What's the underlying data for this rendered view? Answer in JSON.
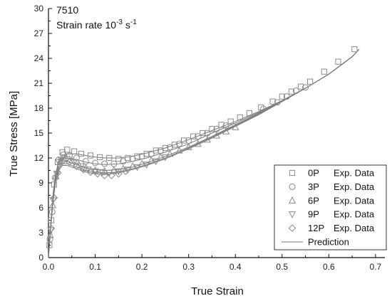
{
  "chart_data": {
    "type": "scatter",
    "annotation": {
      "line1": "7510",
      "line2_base": "Strain rate 10",
      "line2_exp": "-3",
      "line2_unit": " s",
      "line2_unit_exp": "-1"
    },
    "xlabel": "True Strain",
    "ylabel": "True Stress [MPa]",
    "xlim": [
      0,
      0.72
    ],
    "ylim": [
      0,
      30
    ],
    "x_ticks": [
      0.0,
      0.1,
      0.2,
      0.3,
      0.4,
      0.5,
      0.6,
      0.7
    ],
    "x_tick_labels": [
      "0.0",
      "0.1",
      "0.2",
      "0.3",
      "0.4",
      "0.5",
      "0.6",
      "0.7"
    ],
    "y_ticks": [
      0,
      3,
      6,
      9,
      12,
      15,
      18,
      21,
      24,
      27,
      30
    ],
    "y_tick_labels": [
      "0",
      "3",
      "6",
      "9",
      "12",
      "15",
      "18",
      "21",
      "24",
      "27",
      "30"
    ],
    "grid": false,
    "legend_position": "bottom-right",
    "series": [
      {
        "name": "0P",
        "label_suffix": "Exp. Data",
        "marker": "square",
        "points": [
          [
            0.002,
            1.5
          ],
          [
            0.006,
            4.5
          ],
          [
            0.012,
            8.8
          ],
          [
            0.02,
            11.5
          ],
          [
            0.03,
            12.7
          ],
          [
            0.04,
            13.0
          ],
          [
            0.055,
            12.8
          ],
          [
            0.07,
            12.5
          ],
          [
            0.09,
            12.3
          ],
          [
            0.11,
            12.1
          ],
          [
            0.13,
            12.0
          ],
          [
            0.15,
            11.9
          ],
          [
            0.17,
            12.0
          ],
          [
            0.19,
            12.2
          ],
          [
            0.21,
            12.5
          ],
          [
            0.23,
            12.9
          ],
          [
            0.25,
            13.2
          ],
          [
            0.27,
            13.6
          ],
          [
            0.29,
            14.1
          ],
          [
            0.31,
            14.6
          ],
          [
            0.33,
            15.0
          ],
          [
            0.35,
            15.5
          ],
          [
            0.37,
            16.0
          ],
          [
            0.39,
            16.4
          ],
          [
            0.41,
            16.9
          ],
          [
            0.43,
            17.4
          ],
          [
            0.455,
            18.1
          ],
          [
            0.48,
            18.8
          ],
          [
            0.5,
            19.4
          ],
          [
            0.52,
            20.0
          ],
          [
            0.54,
            20.6
          ],
          [
            0.56,
            21.2
          ],
          [
            0.59,
            22.4
          ],
          [
            0.62,
            23.6
          ],
          [
            0.655,
            25.1
          ]
        ]
      },
      {
        "name": "3P",
        "label_suffix": "Exp. Data",
        "marker": "circle",
        "points": [
          [
            0.003,
            2.2
          ],
          [
            0.008,
            5.5
          ],
          [
            0.014,
            9.6
          ],
          [
            0.022,
            11.8
          ],
          [
            0.032,
            12.4
          ],
          [
            0.045,
            12.3
          ],
          [
            0.06,
            12.0
          ],
          [
            0.08,
            11.6
          ],
          [
            0.1,
            11.4
          ],
          [
            0.12,
            11.3
          ],
          [
            0.14,
            11.3
          ],
          [
            0.16,
            11.6
          ],
          [
            0.18,
            11.9
          ],
          [
            0.2,
            12.2
          ],
          [
            0.22,
            12.5
          ],
          [
            0.24,
            12.9
          ],
          [
            0.26,
            13.3
          ],
          [
            0.28,
            13.7
          ],
          [
            0.3,
            14.1
          ],
          [
            0.32,
            14.6
          ],
          [
            0.34,
            15.0
          ],
          [
            0.36,
            15.5
          ],
          [
            0.38,
            15.9
          ],
          [
            0.46,
            17.9
          ],
          [
            0.49,
            18.7
          ],
          [
            0.51,
            19.4
          ],
          [
            0.53,
            20.1
          ],
          [
            0.55,
            20.5
          ]
        ]
      },
      {
        "name": "6P",
        "label_suffix": "Exp. Data",
        "marker": "triangle-up",
        "points": [
          [
            0.004,
            2.7
          ],
          [
            0.009,
            6.3
          ],
          [
            0.016,
            9.8
          ],
          [
            0.025,
            11.6
          ],
          [
            0.035,
            12.0
          ],
          [
            0.05,
            11.7
          ],
          [
            0.065,
            11.2
          ],
          [
            0.08,
            10.8
          ],
          [
            0.1,
            10.5
          ],
          [
            0.12,
            10.4
          ],
          [
            0.14,
            10.5
          ],
          [
            0.16,
            10.7
          ],
          [
            0.18,
            11.0
          ],
          [
            0.2,
            11.3
          ],
          [
            0.22,
            11.7
          ],
          [
            0.24,
            12.1
          ],
          [
            0.26,
            12.5
          ],
          [
            0.28,
            12.9
          ],
          [
            0.3,
            13.3
          ],
          [
            0.32,
            13.7
          ],
          [
            0.34,
            14.2
          ],
          [
            0.36,
            14.7
          ],
          [
            0.38,
            15.2
          ],
          [
            0.4,
            15.7
          ]
        ]
      },
      {
        "name": "9P",
        "label_suffix": "Exp. Data",
        "marker": "triangle-down",
        "points": [
          [
            0.005,
            3.3
          ],
          [
            0.01,
            6.9
          ],
          [
            0.018,
            10.1
          ],
          [
            0.027,
            11.7
          ],
          [
            0.04,
            11.9
          ],
          [
            0.055,
            11.5
          ],
          [
            0.07,
            11.0
          ],
          [
            0.085,
            10.6
          ],
          [
            0.1,
            10.4
          ],
          [
            0.115,
            10.3
          ],
          [
            0.13,
            10.2
          ],
          [
            0.15,
            10.4
          ],
          [
            0.17,
            10.6
          ],
          [
            0.19,
            10.9
          ],
          [
            0.21,
            11.2
          ],
          [
            0.23,
            11.6
          ],
          [
            0.25,
            12.1
          ]
        ]
      },
      {
        "name": "12P",
        "label_suffix": "Exp. Data",
        "marker": "diamond",
        "points": [
          [
            0.006,
            3.5
          ],
          [
            0.012,
            7.2
          ],
          [
            0.02,
            10.2
          ],
          [
            0.03,
            11.6
          ],
          [
            0.045,
            11.5
          ],
          [
            0.06,
            11.0
          ],
          [
            0.075,
            10.6
          ],
          [
            0.09,
            10.3
          ],
          [
            0.105,
            10.1
          ],
          [
            0.12,
            9.9
          ],
          [
            0.135,
            9.9
          ],
          [
            0.15,
            10.1
          ],
          [
            0.165,
            10.4
          ]
        ]
      }
    ],
    "prediction": {
      "name": "Prediction",
      "curves": [
        [
          [
            0,
            0
          ],
          [
            0.005,
            4.2
          ],
          [
            0.01,
            7.8
          ],
          [
            0.015,
            10.0
          ],
          [
            0.022,
            11.6
          ],
          [
            0.03,
            12.3
          ],
          [
            0.04,
            12.5
          ],
          [
            0.06,
            12.5
          ],
          [
            0.08,
            12.3
          ],
          [
            0.1,
            12.1
          ],
          [
            0.12,
            12.0
          ],
          [
            0.15,
            12.0
          ],
          [
            0.18,
            12.2
          ],
          [
            0.21,
            12.6
          ],
          [
            0.25,
            13.2
          ],
          [
            0.3,
            14.2
          ],
          [
            0.35,
            15.3
          ],
          [
            0.4,
            16.4
          ],
          [
            0.45,
            17.6
          ],
          [
            0.5,
            18.9
          ],
          [
            0.55,
            20.4
          ],
          [
            0.6,
            22.1
          ],
          [
            0.65,
            24.2
          ],
          [
            0.665,
            25.1
          ]
        ],
        [
          [
            0,
            0
          ],
          [
            0.005,
            4.0
          ],
          [
            0.01,
            7.5
          ],
          [
            0.015,
            9.8
          ],
          [
            0.022,
            11.3
          ],
          [
            0.03,
            11.9
          ],
          [
            0.04,
            12.0
          ],
          [
            0.06,
            11.8
          ],
          [
            0.08,
            11.5
          ],
          [
            0.1,
            11.3
          ],
          [
            0.12,
            11.2
          ],
          [
            0.15,
            11.3
          ],
          [
            0.18,
            11.6
          ],
          [
            0.21,
            12.0
          ],
          [
            0.25,
            12.7
          ],
          [
            0.3,
            13.7
          ],
          [
            0.35,
            15.0
          ],
          [
            0.4,
            16.2
          ],
          [
            0.45,
            17.5
          ],
          [
            0.5,
            18.9
          ],
          [
            0.55,
            20.4
          ],
          [
            0.6,
            22.1
          ],
          [
            0.65,
            24.2
          ],
          [
            0.665,
            25.1
          ]
        ],
        [
          [
            0,
            0
          ],
          [
            0.005,
            3.9
          ],
          [
            0.01,
            7.2
          ],
          [
            0.015,
            9.4
          ],
          [
            0.022,
            10.9
          ],
          [
            0.03,
            11.5
          ],
          [
            0.04,
            11.6
          ],
          [
            0.06,
            11.2
          ],
          [
            0.08,
            10.8
          ],
          [
            0.1,
            10.6
          ],
          [
            0.12,
            10.5
          ],
          [
            0.15,
            10.6
          ],
          [
            0.18,
            10.9
          ],
          [
            0.21,
            11.4
          ],
          [
            0.25,
            12.2
          ],
          [
            0.3,
            13.3
          ],
          [
            0.35,
            14.6
          ],
          [
            0.4,
            16.0
          ],
          [
            0.45,
            17.4
          ],
          [
            0.5,
            18.9
          ],
          [
            0.55,
            20.4
          ],
          [
            0.6,
            22.1
          ],
          [
            0.65,
            24.2
          ],
          [
            0.665,
            25.1
          ]
        ],
        [
          [
            0,
            0
          ],
          [
            0.005,
            3.8
          ],
          [
            0.01,
            7.0
          ],
          [
            0.015,
            9.2
          ],
          [
            0.022,
            10.7
          ],
          [
            0.03,
            11.3
          ],
          [
            0.04,
            11.3
          ],
          [
            0.06,
            10.9
          ],
          [
            0.08,
            10.5
          ],
          [
            0.1,
            10.3
          ],
          [
            0.12,
            10.2
          ],
          [
            0.15,
            10.3
          ],
          [
            0.18,
            10.7
          ],
          [
            0.21,
            11.2
          ],
          [
            0.25,
            12.0
          ],
          [
            0.3,
            13.2
          ],
          [
            0.35,
            14.5
          ],
          [
            0.4,
            15.9
          ],
          [
            0.45,
            17.3
          ],
          [
            0.5,
            18.8
          ],
          [
            0.55,
            20.4
          ],
          [
            0.6,
            22.1
          ],
          [
            0.65,
            24.2
          ],
          [
            0.665,
            25.1
          ]
        ],
        [
          [
            0,
            0
          ],
          [
            0.005,
            3.7
          ],
          [
            0.01,
            6.8
          ],
          [
            0.015,
            9.0
          ],
          [
            0.022,
            10.5
          ],
          [
            0.03,
            11.1
          ],
          [
            0.04,
            11.1
          ],
          [
            0.06,
            10.7
          ],
          [
            0.08,
            10.3
          ],
          [
            0.1,
            10.1
          ],
          [
            0.12,
            10.0
          ],
          [
            0.15,
            10.2
          ],
          [
            0.18,
            10.6
          ],
          [
            0.21,
            11.1
          ],
          [
            0.25,
            11.9
          ],
          [
            0.3,
            13.1
          ],
          [
            0.35,
            14.4
          ],
          [
            0.4,
            15.8
          ],
          [
            0.45,
            17.2
          ],
          [
            0.5,
            18.8
          ],
          [
            0.55,
            20.4
          ],
          [
            0.6,
            22.1
          ],
          [
            0.65,
            24.2
          ],
          [
            0.665,
            25.1
          ]
        ]
      ]
    },
    "colors": {
      "axis": "#111111",
      "markers": "#8a8a8a",
      "prediction": "#777777",
      "legend_border": "#333333"
    }
  }
}
